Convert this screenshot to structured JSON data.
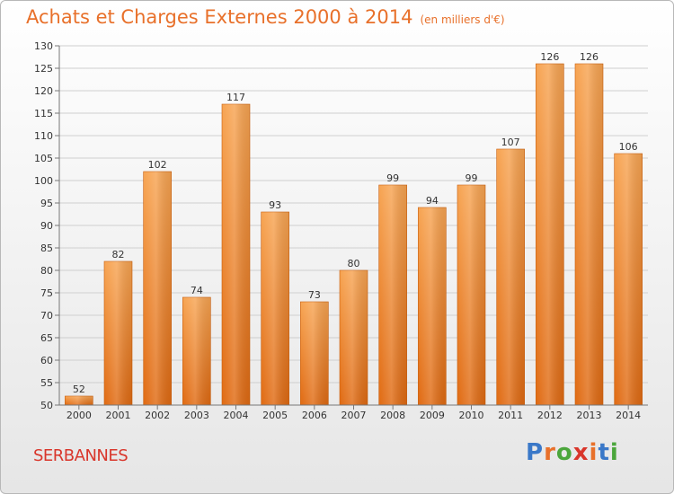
{
  "chart_data": {
    "type": "bar",
    "title": "Achats et Charges Externes 2000 à 2014",
    "subtitle": "(en milliers d'€)",
    "categories": [
      "2000",
      "2001",
      "2002",
      "2003",
      "2004",
      "2005",
      "2006",
      "2007",
      "2008",
      "2009",
      "2010",
      "2011",
      "2012",
      "2013",
      "2014"
    ],
    "values": [
      52,
      82,
      102,
      74,
      117,
      93,
      73,
      80,
      99,
      94,
      99,
      107,
      126,
      126,
      106
    ],
    "ylim": [
      50,
      130
    ],
    "yticks": [
      50,
      55,
      60,
      65,
      70,
      75,
      80,
      85,
      90,
      95,
      100,
      105,
      110,
      115,
      120,
      125,
      130
    ],
    "grid": true,
    "legend": "none",
    "bar_color": "#f08a32"
  },
  "place_name": "SERBANNES",
  "logo": {
    "text": "Proxiti",
    "colors": [
      "#3a78c8",
      "#e8702a",
      "#4ba63c",
      "#d9362b",
      "#e8702a",
      "#3a78c8",
      "#4ba63c"
    ]
  }
}
